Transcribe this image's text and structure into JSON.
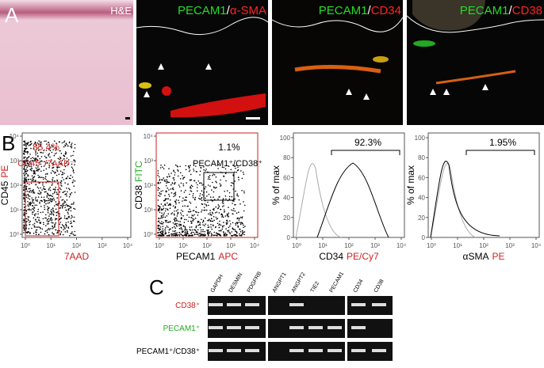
{
  "panel_a": {
    "letter": "A",
    "images": [
      {
        "label": [
          {
            "text": "H&E",
            "color": "#ffffff"
          }
        ]
      },
      {
        "label": [
          {
            "text": "PECAM1",
            "color": "#22dd22"
          },
          {
            "text": "/",
            "color": "#ffffff"
          },
          {
            "text": "α-SMA",
            "color": "#ff2222"
          }
        ]
      },
      {
        "label": [
          {
            "text": "PECAM1",
            "color": "#22dd22"
          },
          {
            "text": "/",
            "color": "#ffffff"
          },
          {
            "text": "CD34",
            "color": "#ff2222"
          }
        ]
      },
      {
        "label": [
          {
            "text": "PECAM1",
            "color": "#22dd22"
          },
          {
            "text": "/",
            "color": "#ffffff"
          },
          {
            "text": "CD38",
            "color": "#ff2222"
          }
        ]
      }
    ]
  },
  "panel_b": {
    "letter": "B",
    "plots": [
      {
        "kind": "dot",
        "percent": "85.4%",
        "gate_label": "CD45⁻/7AAD⁻",
        "gate_color": "#d22222",
        "y_label": [
          {
            "text": "CD45",
            "color": "#000000"
          },
          {
            "text": "PE",
            "color": "#d22222"
          }
        ],
        "x_label": [
          {
            "text": "7AAD",
            "color": "#d22222"
          }
        ],
        "x_ticks": [
          "10⁰",
          "10¹",
          "10²",
          "10³",
          "10⁴"
        ],
        "y_ticks": [
          "10⁰",
          "10¹",
          "10²",
          "10³",
          "10⁴"
        ]
      },
      {
        "kind": "dot",
        "percent": "1.1%",
        "gate_label": "PECAM1⁺/CD38⁺",
        "gate_color": "#000000",
        "y_label": [
          {
            "text": "CD38",
            "color": "#000000"
          },
          {
            "text": "FITC",
            "color": "#22aa22"
          }
        ],
        "x_label": [
          {
            "text": "PECAM1",
            "color": "#000000"
          },
          {
            "text": "APC",
            "color": "#d22222"
          }
        ],
        "x_ticks": [
          "10⁰",
          "10¹",
          "10²",
          "10³",
          "10⁴"
        ],
        "y_ticks": [
          "10⁰",
          "10¹",
          "10²",
          "10³",
          "10⁴"
        ]
      },
      {
        "kind": "hist",
        "percent": "92.3%",
        "y_label": [
          {
            "text": "% of max",
            "color": "#000000"
          }
        ],
        "x_label": [
          {
            "text": "CD34",
            "color": "#000000"
          },
          {
            "text": "PE/Cy7",
            "color": "#d22222"
          }
        ],
        "x_ticks": [
          "10⁰",
          "10¹",
          "10²",
          "10³",
          "10⁴"
        ],
        "y_ticks": [
          0,
          20,
          40,
          60,
          80,
          100
        ]
      },
      {
        "kind": "hist",
        "percent": "1.95%",
        "y_label": [
          {
            "text": "% of max",
            "color": "#000000"
          }
        ],
        "x_label": [
          {
            "text": "αSMA",
            "color": "#000000"
          },
          {
            "text": "PE",
            "color": "#d22222"
          }
        ],
        "x_ticks": [
          "10⁰",
          "10¹",
          "10²",
          "10³",
          "10⁴"
        ],
        "y_ticks": [
          0,
          20,
          40,
          60,
          80,
          100
        ]
      }
    ]
  },
  "panel_c": {
    "letter": "C",
    "lanes": [
      "GAPDH",
      "DESMIN",
      "PDGFRB",
      "ANGPT1",
      "ANGPT2",
      "TIE2",
      "PECAM1",
      "CD34",
      "CD38"
    ],
    "rows": [
      {
        "label": [
          {
            "text": "CD38⁺",
            "color": "#d22222"
          }
        ]
      },
      {
        "label": [
          {
            "text": "PECAM1⁺",
            "color": "#22aa22"
          }
        ]
      },
      {
        "label": [
          {
            "text": "PECAM1⁺/CD38⁺",
            "color": "#000000"
          }
        ]
      }
    ]
  }
}
